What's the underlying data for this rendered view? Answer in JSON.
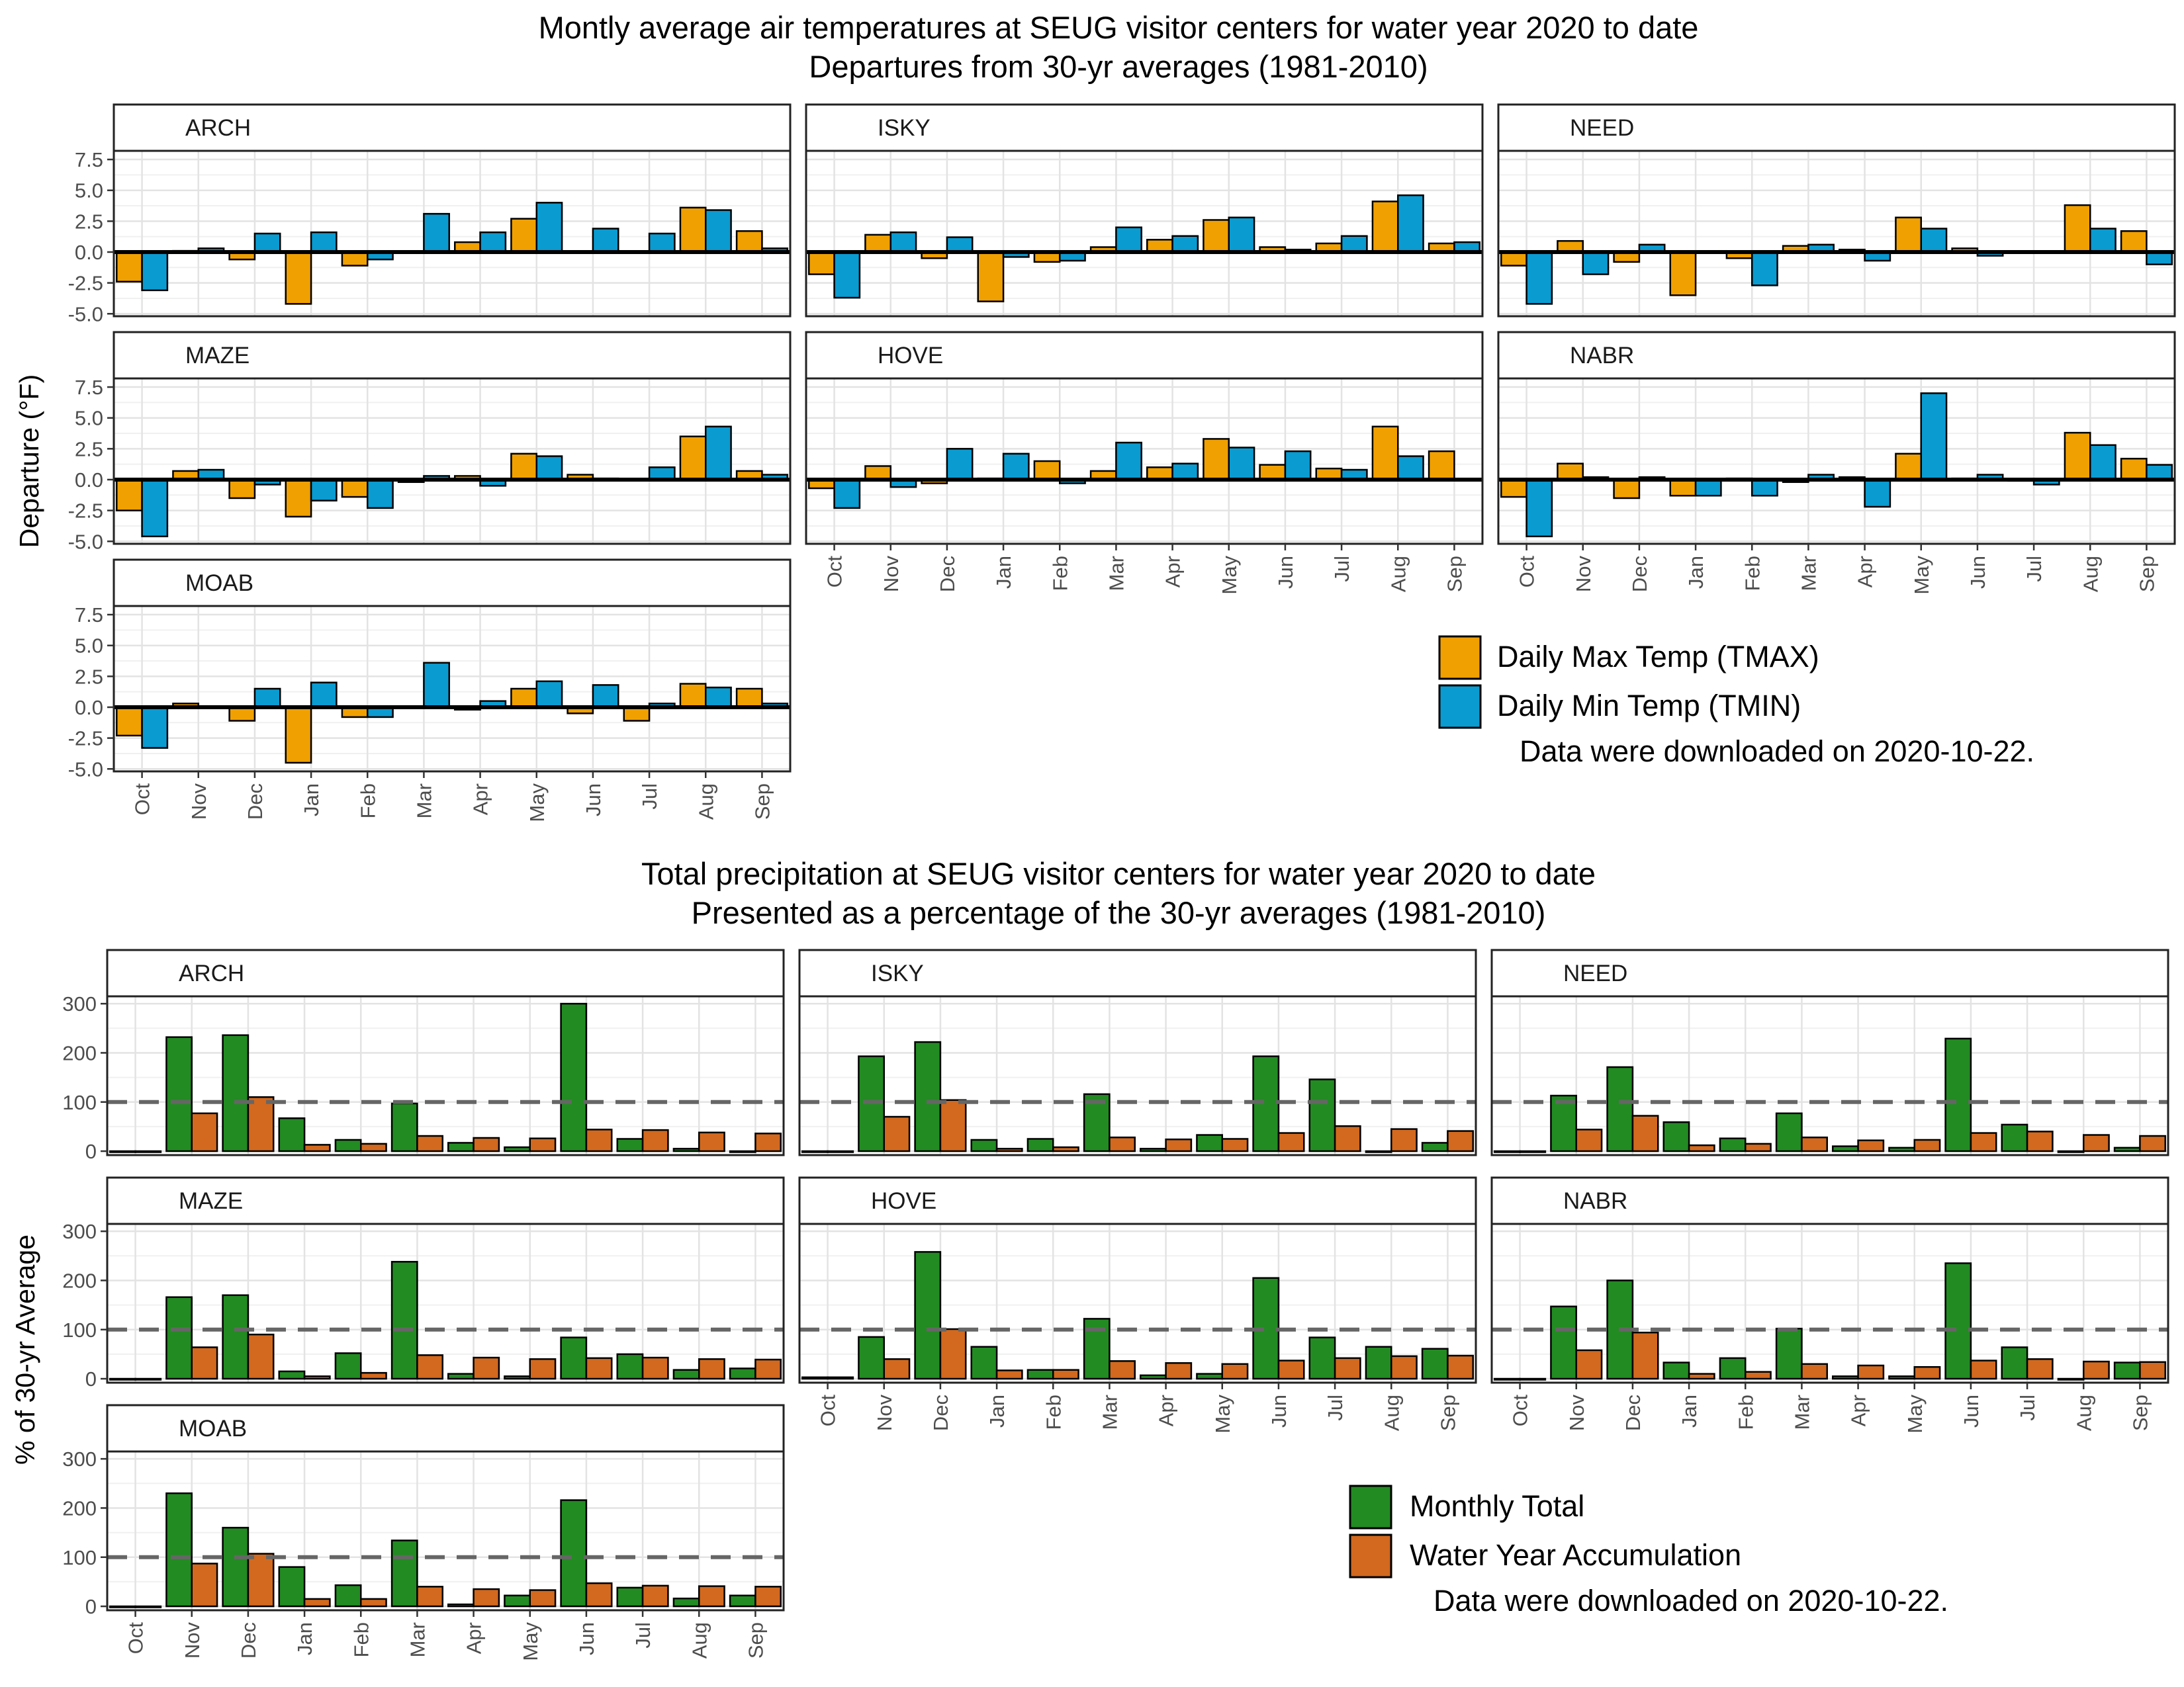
{
  "temperature": {
    "title_line1": "Montly average air temperatures at SEUG visitor centers for water year 2020 to date",
    "title_line2": "Departures from 30-yr averages (1981-2010)",
    "ylabel": "Departure (°F)",
    "legend": {
      "items": [
        {
          "label": "Daily Max Temp (TMAX)",
          "color": "#F0A000"
        },
        {
          "label": "Daily Min Temp (TMIN)",
          "color": "#0A9BD0"
        }
      ],
      "note": "Data were downloaded on 2020-10-22."
    }
  },
  "precipitation": {
    "title_line1": "Total precipitation at SEUG visitor centers for water year 2020 to date",
    "title_line2": "Presented as a percentage of the 30-yr averages (1981-2010)",
    "ylabel": "% of 30-yr Average",
    "legend": {
      "items": [
        {
          "label": "Monthly Total",
          "color": "#228B22"
        },
        {
          "label": "Water Year Accumulation",
          "color": "#D2691E"
        }
      ],
      "note": "Data were downloaded on 2020-10-22."
    }
  },
  "chart_data": [
    {
      "type": "bar",
      "group": "temperature",
      "categories": [
        "Oct",
        "Nov",
        "Dec",
        "Jan",
        "Feb",
        "Mar",
        "Apr",
        "May",
        "Jun",
        "Jul",
        "Aug",
        "Sep"
      ],
      "ylim": [
        -5.2,
        8.2
      ],
      "yticks": [
        -5.0,
        -2.5,
        0.0,
        2.5,
        5.0,
        7.5
      ],
      "yticklabels": [
        "-5.0",
        "-2.5",
        "0.0",
        "2.5",
        "5.0",
        "7.5"
      ],
      "reference_line": 0,
      "panels": [
        {
          "name": "ARCH",
          "series": [
            {
              "name": "Daily Max Temp (TMAX)",
              "values": [
                -2.4,
                0.1,
                -0.6,
                -4.2,
                -1.1,
                0.0,
                0.8,
                2.7,
                0.0,
                0.0,
                3.6,
                1.7
              ]
            },
            {
              "name": "Daily Min Temp (TMIN)",
              "values": [
                -3.1,
                0.3,
                1.5,
                1.6,
                -0.6,
                3.1,
                1.6,
                4.0,
                1.9,
                1.5,
                3.4,
                0.3
              ]
            }
          ]
        },
        {
          "name": "ISKY",
          "series": [
            {
              "name": "Daily Max Temp (TMAX)",
              "values": [
                -1.8,
                1.4,
                -0.5,
                -4.0,
                -0.8,
                0.4,
                1.0,
                2.6,
                0.4,
                0.7,
                4.1,
                0.7
              ]
            },
            {
              "name": "Daily Min Temp (TMIN)",
              "values": [
                -3.7,
                1.6,
                1.2,
                -0.4,
                -0.7,
                2.0,
                1.3,
                2.8,
                0.2,
                1.3,
                4.6,
                0.8
              ]
            }
          ]
        },
        {
          "name": "NEED",
          "series": [
            {
              "name": "Daily Max Temp (TMAX)",
              "values": [
                -1.1,
                0.9,
                -0.8,
                -3.5,
                -0.5,
                0.5,
                0.2,
                2.8,
                0.3,
                0.0,
                3.8,
                1.7
              ]
            },
            {
              "name": "Daily Min Temp (TMIN)",
              "values": [
                -4.2,
                -1.8,
                0.6,
                0.0,
                -2.7,
                0.6,
                -0.7,
                1.9,
                -0.3,
                0.0,
                1.9,
                -1.0
              ]
            }
          ]
        },
        {
          "name": "MAZE",
          "series": [
            {
              "name": "Daily Max Temp (TMAX)",
              "values": [
                -2.5,
                0.7,
                -1.5,
                -3.0,
                -1.4,
                -0.2,
                0.3,
                2.1,
                0.4,
                0.0,
                3.5,
                0.7
              ]
            },
            {
              "name": "Daily Min Temp (TMIN)",
              "values": [
                -4.6,
                0.8,
                -0.4,
                -1.7,
                -2.3,
                0.3,
                -0.5,
                1.9,
                0.1,
                1.0,
                4.3,
                0.4
              ]
            }
          ]
        },
        {
          "name": "HOVE",
          "series": [
            {
              "name": "Daily Max Temp (TMAX)",
              "values": [
                -0.7,
                1.1,
                -0.3,
                0.1,
                1.5,
                0.7,
                1.0,
                3.3,
                1.2,
                0.9,
                4.3,
                2.3
              ]
            },
            {
              "name": "Daily Min Temp (TMIN)",
              "values": [
                -2.3,
                -0.6,
                2.5,
                2.1,
                -0.3,
                3.0,
                1.3,
                2.6,
                2.3,
                0.8,
                1.9,
                0.0
              ]
            }
          ]
        },
        {
          "name": "NABR",
          "series": [
            {
              "name": "Daily Max Temp (TMAX)",
              "values": [
                -1.4,
                1.3,
                -1.5,
                -1.3,
                0.1,
                -0.2,
                0.2,
                2.1,
                0.1,
                -0.1,
                3.8,
                1.7
              ]
            },
            {
              "name": "Daily Min Temp (TMIN)",
              "values": [
                -4.6,
                0.2,
                0.2,
                -1.3,
                -1.3,
                0.4,
                -2.2,
                7.0,
                0.4,
                -0.4,
                2.8,
                1.2
              ]
            }
          ]
        },
        {
          "name": "MOAB",
          "series": [
            {
              "name": "Daily Max Temp (TMAX)",
              "values": [
                -2.3,
                0.3,
                -1.1,
                -4.5,
                -0.8,
                0.0,
                -0.2,
                1.5,
                -0.5,
                -1.1,
                1.9,
                1.5
              ]
            },
            {
              "name": "Daily Min Temp (TMIN)",
              "values": [
                -3.3,
                0.0,
                1.5,
                2.0,
                -0.8,
                3.6,
                0.5,
                2.1,
                1.8,
                0.3,
                1.6,
                0.3
              ]
            }
          ]
        }
      ]
    },
    {
      "type": "bar",
      "group": "precipitation",
      "categories": [
        "Oct",
        "Nov",
        "Dec",
        "Jan",
        "Feb",
        "Mar",
        "Apr",
        "May",
        "Jun",
        "Jul",
        "Aug",
        "Sep"
      ],
      "ylim": [
        -8,
        315
      ],
      "yticks": [
        0,
        100,
        200,
        300
      ],
      "yticklabels": [
        "0",
        "100",
        "200",
        "300"
      ],
      "reference_line": 100,
      "panels": [
        {
          "name": "ARCH",
          "series": [
            {
              "name": "Monthly Total",
              "values": [
                0,
                232,
                236,
                67,
                23,
                97,
                17,
                8,
                300,
                25,
                5,
                0
              ]
            },
            {
              "name": "Water Year Accumulation",
              "values": [
                0,
                77,
                110,
                13,
                15,
                31,
                27,
                26,
                44,
                43,
                38,
                36
              ]
            }
          ]
        },
        {
          "name": "ISKY",
          "series": [
            {
              "name": "Monthly Total",
              "values": [
                0,
                193,
                222,
                23,
                25,
                116,
                5,
                33,
                193,
                146,
                0,
                17
              ]
            },
            {
              "name": "Water Year Accumulation",
              "values": [
                0,
                70,
                104,
                5,
                8,
                28,
                24,
                25,
                37,
                51,
                45,
                41
              ]
            }
          ]
        },
        {
          "name": "NEED",
          "series": [
            {
              "name": "Monthly Total",
              "values": [
                0,
                113,
                171,
                59,
                26,
                77,
                10,
                7,
                229,
                54,
                0,
                7
              ]
            },
            {
              "name": "Water Year Accumulation",
              "values": [
                0,
                44,
                72,
                12,
                15,
                28,
                22,
                23,
                37,
                40,
                33,
                31
              ]
            }
          ]
        },
        {
          "name": "MAZE",
          "series": [
            {
              "name": "Monthly Total",
              "values": [
                0,
                166,
                170,
                15,
                52,
                238,
                10,
                5,
                84,
                50,
                18,
                21
              ]
            },
            {
              "name": "Water Year Accumulation",
              "values": [
                0,
                64,
                90,
                5,
                12,
                48,
                43,
                40,
                42,
                43,
                40,
                39
              ]
            }
          ]
        },
        {
          "name": "HOVE",
          "series": [
            {
              "name": "Monthly Total",
              "values": [
                3,
                85,
                258,
                65,
                18,
                122,
                7,
                10,
                205,
                84,
                65,
                61
              ]
            },
            {
              "name": "Water Year Accumulation",
              "values": [
                3,
                40,
                101,
                17,
                18,
                36,
                32,
                30,
                37,
                42,
                46,
                47
              ]
            }
          ]
        },
        {
          "name": "NABR",
          "series": [
            {
              "name": "Monthly Total",
              "values": [
                0,
                147,
                200,
                33,
                42,
                102,
                5,
                5,
                235,
                64,
                0,
                33
              ]
            },
            {
              "name": "Water Year Accumulation",
              "values": [
                0,
                58,
                94,
                10,
                14,
                30,
                27,
                24,
                37,
                40,
                35,
                34
              ]
            }
          ]
        },
        {
          "name": "MOAB",
          "series": [
            {
              "name": "Monthly Total",
              "values": [
                0,
                230,
                160,
                80,
                43,
                134,
                4,
                22,
                216,
                38,
                16,
                22
              ]
            },
            {
              "name": "Water Year Accumulation",
              "values": [
                0,
                87,
                107,
                15,
                15,
                40,
                35,
                33,
                47,
                42,
                41,
                40
              ]
            }
          ]
        }
      ]
    }
  ]
}
